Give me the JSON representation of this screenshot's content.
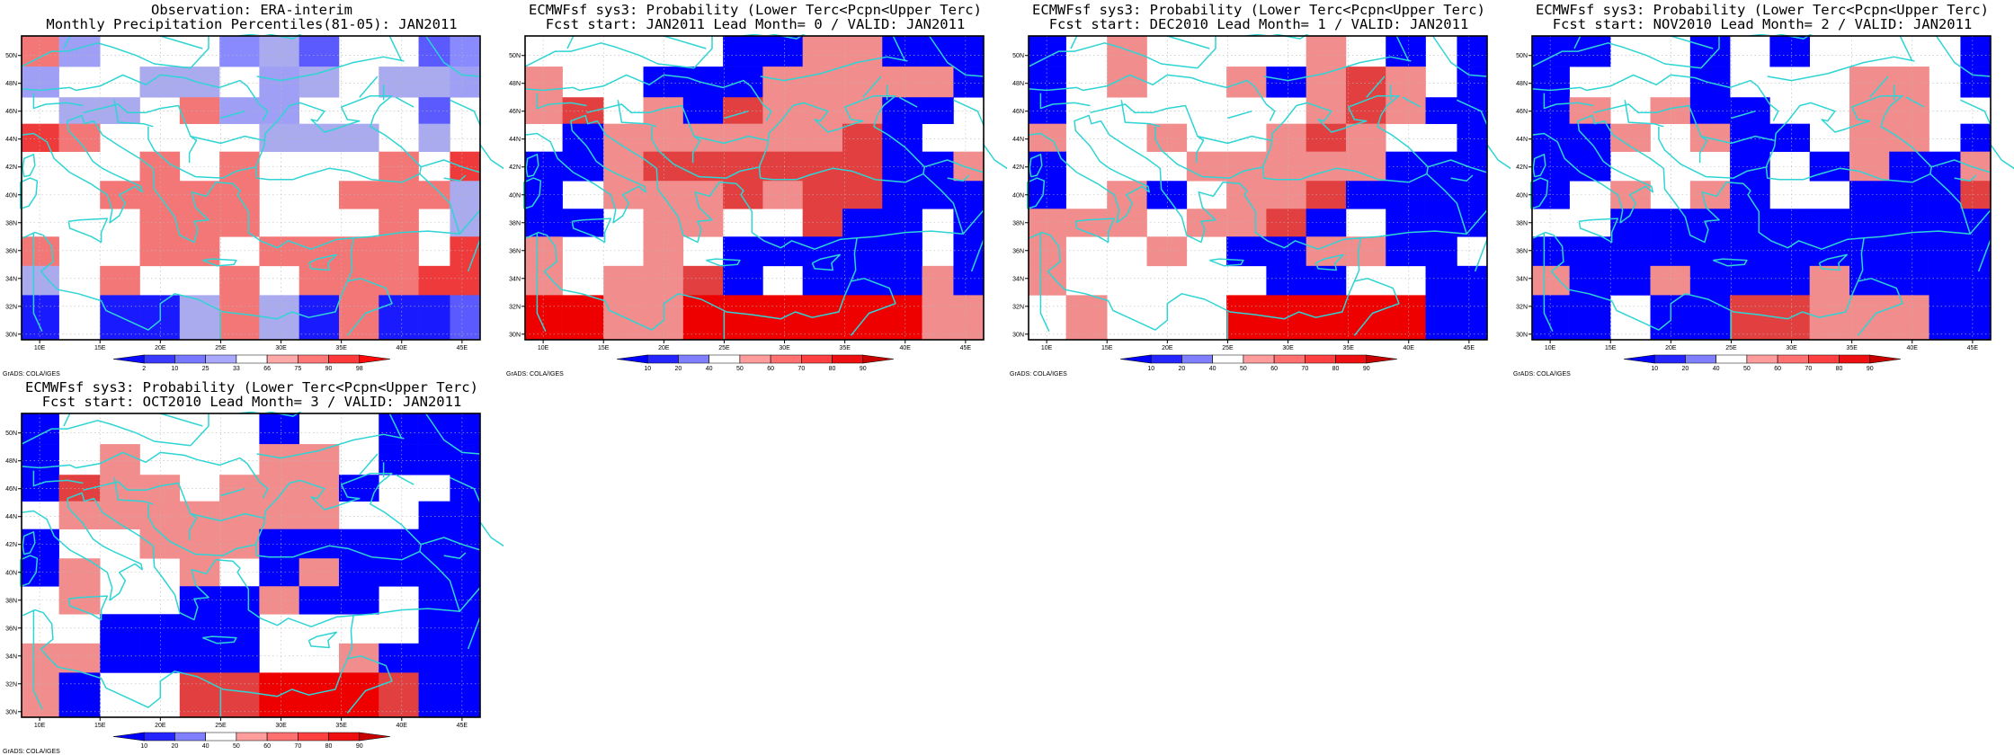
{
  "panels": [
    {
      "id": "obs",
      "title_line1": "Observation: ERA-interim",
      "title_line2": "Monthly Precipitation Percentiles(81-05): JAN2011",
      "colorbar_labels": [
        "2",
        "10",
        "25",
        "33",
        "66",
        "75",
        "90",
        "98"
      ],
      "credit": "GrADS: COLA/IGES",
      "cells": [
        "Lw...Wlb..bW",
        "w..ll.wl.llw",
        ".ll.Lww...b.",
        "RL....lll.l.",
        "...L.L...L.R",
        "..LLLL..LLLl",
        "...LLL...L.l",
        "L..LL.LLLL.R",
        "l.L..L.LLLRR",
        "B.BBlLlBLBBb"
      ]
    },
    {
      "id": "lead0",
      "title_line1": "ECMWFsf sys3: Probability (Lower Terc<Pcpn<Upper Terc)",
      "title_line2": "Fcst start: JAN2011   Lead Month= 0 / VALID: JAN2011",
      "colorbar_labels": [
        "10",
        "20",
        "40",
        "50",
        "60",
        "70",
        "80",
        "90"
      ],
      "credit": "GrADS: COLA/IGES",
      "cells": [
        ".....BBLLBBB",
        "L..BBBLLLLLB",
        "LR.LBRLLLBB.",
        ".BLLLLLLRB..",
        "BBLRRRRRRBBL",
        "B.LLLRLRRBBB",
        "BB.LL..RBB.B",
        "L..L.BBBBB.B",
        "L.LLRB.BBBLB",
        "DDLLDDDDDDLL"
      ]
    },
    {
      "id": "lead1",
      "title_line1": "ECMWFsf sys3: Probability (Lower Terc<Pcpn<Upper Terc)",
      "title_line2": "Fcst start: DEC2010   Lead Month= 1 / VALID: JAN2011",
      "colorbar_labels": [
        "10",
        "20",
        "40",
        "50",
        "60",
        "70",
        "80",
        "90"
      ],
      "credit": "GrADS: COLA/IGES",
      "cells": [
        "B.L....L.B.B",
        "B.L..LBLRL.B",
        "B......LRLBB",
        "L..L..LRL..B",
        "B...LLLLLBBB",
        "B.LB.LLRBBBB",
        "LLL.LLRB.BBB",
        "L..L.BBLLBB.",
        "L.....BB..BB",
        ".L...DDDDDBB"
      ]
    },
    {
      "id": "lead2",
      "title_line1": "ECMWFsf sys3: Probability (Lower Terc<Pcpn<Upper Terc)",
      "title_line2": "Fcst start: NOV2010   Lead Month= 2 / VALID: JAN2011",
      "colorbar_labels": [
        "10",
        "20",
        "40",
        "50",
        "60",
        "70",
        "80",
        "90"
      ],
      "credit": "GrADS: COLA/IGES",
      "cells": [
        "BB..B.B....B",
        "B...B...LL.B",
        "BL.LBB..LL..",
        "BBL.LBB.LL.B",
        "BB...B.BLBBL",
        "B.L.LB..BBBR",
        "..BBBBBBBBBB",
        "BBBBBBBBBBBB",
        "LBBLBBBLBBBB",
        "BB.BBRRLLLBB"
      ]
    },
    {
      "id": "lead3",
      "title_line1": "ECMWFsf sys3: Probability (Lower Terc<Pcpn<Upper Terc)",
      "title_line2": "Fcst start: OCT2010   Lead Month= 3 / VALID: JAN2011",
      "colorbar_labels": [
        "10",
        "20",
        "40",
        "50",
        "60",
        "70",
        "80",
        "90"
      ],
      "credit": "GrADS: COLA/IGES",
      "cells": [
        "B.....B..BBB",
        "B.L...LL.BBB",
        "BRLL.LLLB..B",
        ".LLLLLLL..BB",
        "B..LLLBBBBBB",
        "BL..L.BLBBBB",
        ".L..BBLBB.BB",
        "..BBBB....BB",
        "LLBBBB..LBBB",
        "LB..RRDDDRBB"
      ]
    }
  ],
  "map": {
    "lat_ticks": [
      "50N",
      "48N",
      "46N",
      "44N",
      "42N",
      "40N",
      "38N",
      "36N",
      "34N",
      "32N",
      "30N"
    ],
    "lon_ticks": [
      "10E",
      "15E",
      "20E",
      "25E",
      "30E",
      "35E",
      "40E",
      "45E"
    ]
  },
  "colors": {
    "obs_scale": [
      "#0a0aff",
      "#3a3aff",
      "#7878ff",
      "#a8a8ff",
      "#ffffff",
      "#ffa8a8",
      "#ff7878",
      "#ff3a3a",
      "#ff0a0a"
    ],
    "fcst_scale": [
      "#0000ff",
      "#2525ff",
      "#8080ff",
      "#ffffff",
      "#ff9d9d",
      "#ff7070",
      "#ff4040",
      "#ee1010",
      "#c80000"
    ],
    "cells": {
      "obs": {
        "B": "#1a1aff",
        "b": "#5a5aff",
        "W": "#8a8aff",
        "w": "#9f9ff5",
        "l": "#aaaaee",
        "L": "#f37777",
        "R": "#ee3a3a",
        "D": "#d80000"
      },
      "fcst": {
        "B": "#0000ff",
        "b": "#3030ff",
        "W": "#7070ff",
        "w": "#9999ff",
        "l": "#f8a8a8",
        "L": "#f18d8d",
        "R": "#e24040",
        "D": "#ee0000"
      }
    },
    "coast": "#2fd4d4",
    "grid": "#b8b8b8"
  }
}
